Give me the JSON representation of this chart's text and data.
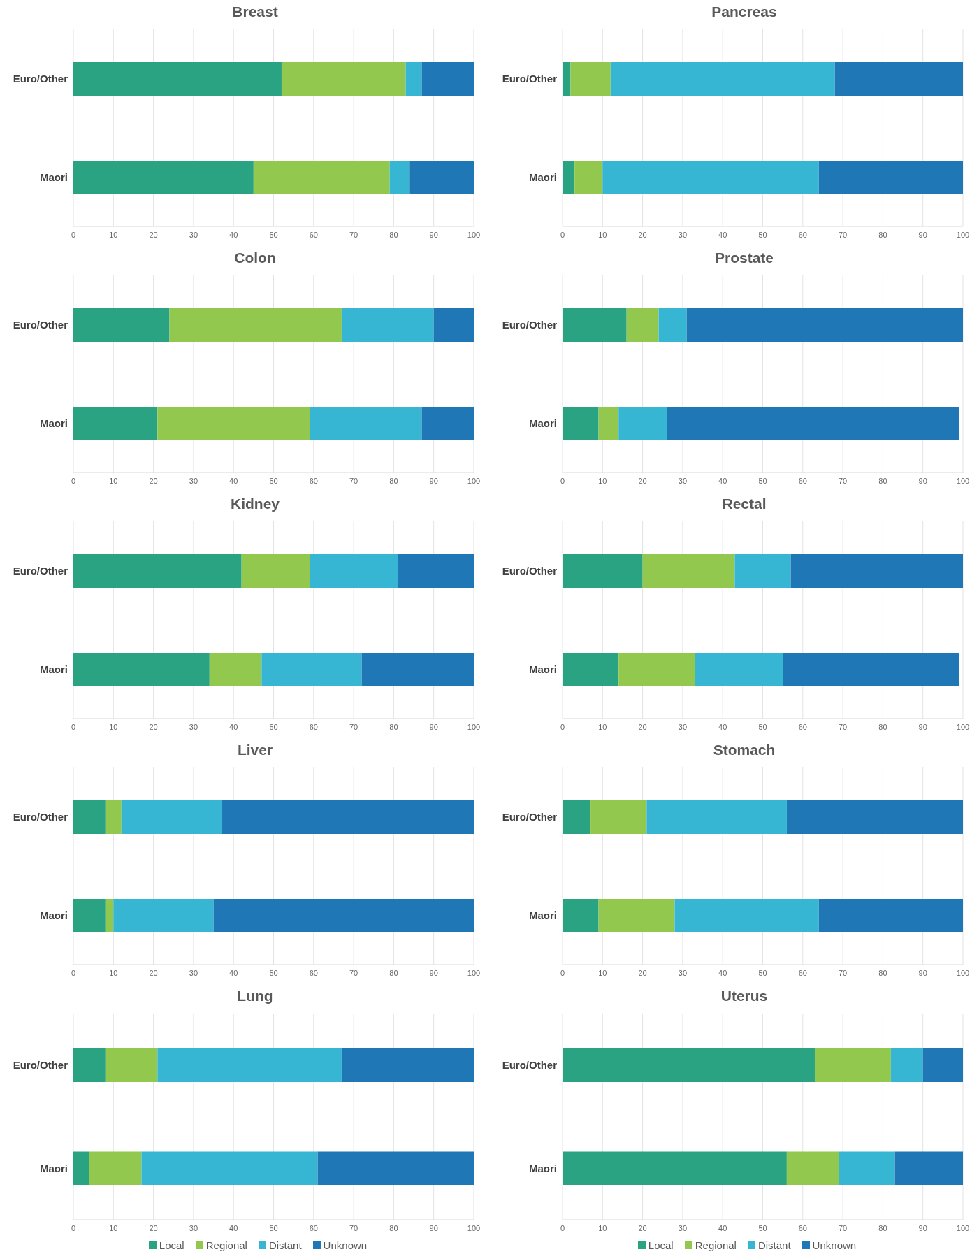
{
  "chart_data": [
    {
      "type": "bar",
      "title": "Breast",
      "orientation": "horizontal",
      "stacked": true,
      "grid": "x",
      "categories": [
        "Euro/Other",
        "Maori"
      ],
      "xlim": [
        0,
        100
      ],
      "xticks": [
        0,
        10,
        20,
        30,
        40,
        50,
        60,
        70,
        80,
        90,
        100
      ],
      "series": [
        {
          "color": "#2aa383",
          "values": [
            52,
            45
          ]
        },
        {
          "color": "#92c84e",
          "values": [
            31,
            34
          ]
        },
        {
          "color": "#36b6d3",
          "values": [
            4,
            5
          ]
        },
        {
          "color": "#1f78b5",
          "values": [
            13,
            16
          ]
        }
      ]
    },
    {
      "type": "bar",
      "title": "Pancreas",
      "orientation": "horizontal",
      "stacked": true,
      "grid": "x",
      "categories": [
        "Euro/Other",
        "Maori"
      ],
      "xlim": [
        0,
        100
      ],
      "xticks": [
        0,
        10,
        20,
        30,
        40,
        50,
        60,
        70,
        80,
        90,
        100
      ],
      "series": [
        {
          "color": "#2aa383",
          "values": [
            2,
            3
          ]
        },
        {
          "color": "#92c84e",
          "values": [
            10,
            7
          ]
        },
        {
          "color": "#36b6d3",
          "values": [
            56,
            54
          ]
        },
        {
          "color": "#1f78b5",
          "values": [
            32,
            36
          ]
        }
      ]
    },
    {
      "type": "bar",
      "title": "Colon",
      "orientation": "horizontal",
      "stacked": true,
      "grid": "x",
      "categories": [
        "Euro/Other",
        "Maori"
      ],
      "xlim": [
        0,
        100
      ],
      "xticks": [
        0,
        10,
        20,
        30,
        40,
        50,
        60,
        70,
        80,
        90,
        100
      ],
      "series": [
        {
          "color": "#2aa383",
          "values": [
            24,
            21
          ]
        },
        {
          "color": "#92c84e",
          "values": [
            43,
            38
          ]
        },
        {
          "color": "#36b6d3",
          "values": [
            23,
            28
          ]
        },
        {
          "color": "#1f78b5",
          "values": [
            10,
            13
          ]
        }
      ]
    },
    {
      "type": "bar",
      "title": "Prostate",
      "orientation": "horizontal",
      "stacked": true,
      "grid": "x",
      "categories": [
        "Euro/Other",
        "Maori"
      ],
      "xlim": [
        0,
        100
      ],
      "xticks": [
        0,
        10,
        20,
        30,
        40,
        50,
        60,
        70,
        80,
        90,
        100
      ],
      "series": [
        {
          "color": "#2aa383",
          "values": [
            16,
            9
          ]
        },
        {
          "color": "#92c84e",
          "values": [
            8,
            5
          ]
        },
        {
          "color": "#36b6d3",
          "values": [
            7,
            12
          ]
        },
        {
          "color": "#1f78b5",
          "values": [
            69,
            73
          ]
        }
      ]
    },
    {
      "type": "bar",
      "title": "Kidney",
      "orientation": "horizontal",
      "stacked": true,
      "grid": "x",
      "categories": [
        "Euro/Other",
        "Maori"
      ],
      "xlim": [
        0,
        100
      ],
      "xticks": [
        0,
        10,
        20,
        30,
        40,
        50,
        60,
        70,
        80,
        90,
        100
      ],
      "series": [
        {
          "color": "#2aa383",
          "values": [
            42,
            34
          ]
        },
        {
          "color": "#92c84e",
          "values": [
            17,
            13
          ]
        },
        {
          "color": "#36b6d3",
          "values": [
            22,
            25
          ]
        },
        {
          "color": "#1f78b5",
          "values": [
            19,
            28
          ]
        }
      ]
    },
    {
      "type": "bar",
      "title": "Rectal",
      "orientation": "horizontal",
      "stacked": true,
      "grid": "x",
      "categories": [
        "Euro/Other",
        "Maori"
      ],
      "xlim": [
        0,
        100
      ],
      "xticks": [
        0,
        10,
        20,
        30,
        40,
        50,
        60,
        70,
        80,
        90,
        100
      ],
      "series": [
        {
          "color": "#2aa383",
          "values": [
            20,
            14
          ]
        },
        {
          "color": "#92c84e",
          "values": [
            23,
            19
          ]
        },
        {
          "color": "#36b6d3",
          "values": [
            14,
            22
          ]
        },
        {
          "color": "#1f78b5",
          "values": [
            43,
            44
          ]
        }
      ]
    },
    {
      "type": "bar",
      "title": "Liver",
      "orientation": "horizontal",
      "stacked": true,
      "grid": "x",
      "categories": [
        "Euro/Other",
        "Maori"
      ],
      "xlim": [
        0,
        100
      ],
      "xticks": [
        0,
        10,
        20,
        30,
        40,
        50,
        60,
        70,
        80,
        90,
        100
      ],
      "series": [
        {
          "color": "#2aa383",
          "values": [
            8,
            8
          ]
        },
        {
          "color": "#92c84e",
          "values": [
            4,
            2
          ]
        },
        {
          "color": "#36b6d3",
          "values": [
            25,
            25
          ]
        },
        {
          "color": "#1f78b5",
          "values": [
            63,
            65
          ]
        }
      ]
    },
    {
      "type": "bar",
      "title": "Stomach",
      "orientation": "horizontal",
      "stacked": true,
      "grid": "x",
      "categories": [
        "Euro/Other",
        "Maori"
      ],
      "xlim": [
        0,
        100
      ],
      "xticks": [
        0,
        10,
        20,
        30,
        40,
        50,
        60,
        70,
        80,
        90,
        100
      ],
      "series": [
        {
          "color": "#2aa383",
          "values": [
            7,
            9
          ]
        },
        {
          "color": "#92c84e",
          "values": [
            14,
            19
          ]
        },
        {
          "color": "#36b6d3",
          "values": [
            35,
            36
          ]
        },
        {
          "color": "#1f78b5",
          "values": [
            44,
            36
          ]
        }
      ]
    },
    {
      "type": "bar",
      "title": "Lung",
      "orientation": "horizontal",
      "stacked": true,
      "grid": "x",
      "legend": "bottom",
      "categories": [
        "Euro/Other",
        "Maori"
      ],
      "xlim": [
        0,
        100
      ],
      "xticks": [
        0,
        10,
        20,
        30,
        40,
        50,
        60,
        70,
        80,
        90,
        100
      ],
      "series": [
        {
          "name": "Local",
          "color": "#2aa383",
          "values": [
            8,
            4
          ]
        },
        {
          "name": "Regional",
          "color": "#92c84e",
          "values": [
            13,
            13
          ]
        },
        {
          "name": "Distant",
          "color": "#36b6d3",
          "values": [
            46,
            44
          ]
        },
        {
          "name": "Unknown",
          "color": "#1f78b5",
          "values": [
            33,
            39
          ]
        }
      ]
    },
    {
      "type": "bar",
      "title": "Uterus",
      "orientation": "horizontal",
      "stacked": true,
      "grid": "x",
      "legend": "bottom",
      "categories": [
        "Euro/Other",
        "Maori"
      ],
      "xlim": [
        0,
        100
      ],
      "xticks": [
        0,
        10,
        20,
        30,
        40,
        50,
        60,
        70,
        80,
        90,
        100
      ],
      "series": [
        {
          "name": "Local",
          "color": "#2aa383",
          "values": [
            63,
            56
          ]
        },
        {
          "name": "Regional",
          "color": "#92c84e",
          "values": [
            19,
            13
          ]
        },
        {
          "name": "Distant",
          "color": "#36b6d3",
          "values": [
            8,
            14
          ]
        },
        {
          "name": "Unknown",
          "color": "#1f78b5",
          "values": [
            10,
            17
          ]
        }
      ]
    }
  ]
}
